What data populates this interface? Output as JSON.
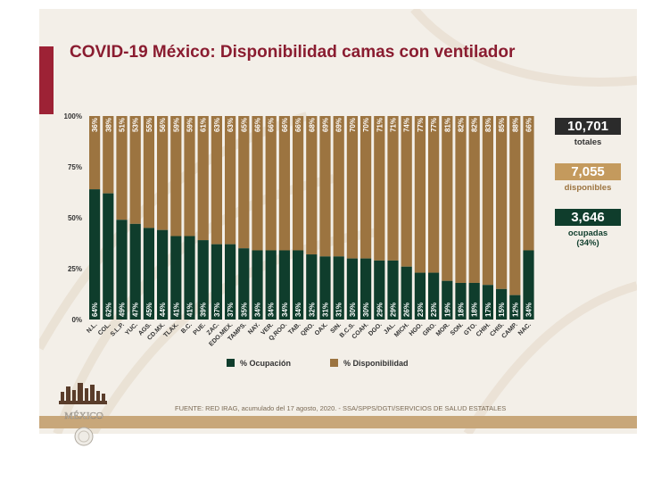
{
  "title": "COVID-19 México: Disponibilidad camas con ventilador",
  "stats": {
    "total_value": "10,701",
    "total_label": "totales",
    "disp_value": "7,055",
    "disp_label": "disponibles",
    "occ_value": "3,646",
    "occ_label": "ocupadas",
    "occ_pct": "(34%)"
  },
  "source": "FUENTE: RED IRAG, acumulado del 17 agosto, 2020. -  SSA/SPPS/DGTI/SERVICIOS DE SALUD ESTATALES",
  "logo_text": "MÉXICO",
  "colors": {
    "occupied": "#0f3d2c",
    "available": "#9c7440",
    "accent": "#9d2235"
  },
  "chart_data": {
    "type": "bar",
    "stacked": true,
    "orientation": "vertical",
    "categories": [
      "N.L.",
      "COL.",
      "S.L.P.",
      "YUC.",
      "AGS.",
      "CD.MX.",
      "TLAX.",
      "B.C.",
      "PUE.",
      "ZAC.",
      "EDO.MEX.",
      "TAMPS.",
      "NAY.",
      "VER.",
      "Q.ROO.",
      "TAB.",
      "QRO.",
      "OAX.",
      "SIN.",
      "B.C.S.",
      "COAH.",
      "DGO.",
      "JAL.",
      "MICH.",
      "HGO.",
      "GRO.",
      "MOR.",
      "SON.",
      "GTO.",
      "CHIH.",
      "CHIS.",
      "CAMP.",
      "NAC."
    ],
    "series": [
      {
        "name": "% Ocupación",
        "color": "#0f3d2c",
        "values": [
          64,
          62,
          49,
          47,
          45,
          44,
          41,
          41,
          39,
          37,
          37,
          35,
          34,
          34,
          34,
          34,
          32,
          31,
          31,
          30,
          30,
          29,
          29,
          26,
          23,
          23,
          19,
          18,
          18,
          17,
          15,
          12,
          34
        ]
      },
      {
        "name": "% Disponibilidad",
        "color": "#9c7440",
        "values": [
          36,
          38,
          51,
          53,
          55,
          56,
          59,
          59,
          61,
          63,
          63,
          65,
          66,
          66,
          66,
          66,
          68,
          69,
          69,
          70,
          70,
          71,
          71,
          74,
          77,
          77,
          81,
          82,
          82,
          83,
          85,
          88,
          66
        ]
      }
    ],
    "y_ticks": [
      "0%",
      "25%",
      "50%",
      "75%",
      "100%"
    ],
    "ylim": [
      0,
      100
    ],
    "legend_position": "bottom",
    "grid": false
  }
}
